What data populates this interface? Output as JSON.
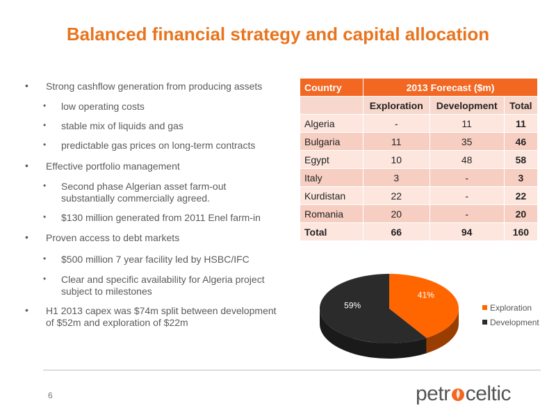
{
  "title": "Balanced financial strategy and capital allocation",
  "bullets": [
    {
      "level": 1,
      "text": "Strong cashflow generation from producing assets"
    },
    {
      "level": 2,
      "text": "low operating costs"
    },
    {
      "level": 2,
      "text": "stable mix of liquids and gas"
    },
    {
      "level": 2,
      "text": "predictable gas prices on long-term contracts"
    },
    {
      "level": 1,
      "text": "Effective portfolio management"
    },
    {
      "level": 2,
      "text": "Second phase Algerian asset farm-out substantially commercially agreed."
    },
    {
      "level": 2,
      "text": "$130 million generated from 2011 Enel farm-in"
    },
    {
      "level": 1,
      "text": "Proven access  to debt markets"
    },
    {
      "level": 2,
      "text": "$500 million 7 year facility led by HSBC/IFC"
    },
    {
      "level": 2,
      "text": "Clear and specific availability for Algeria project subject to milestones"
    },
    {
      "level": 1,
      "text": "H1 2013 capex was $74m split between development of $52m and exploration of $22m"
    }
  ],
  "table": {
    "header_country": "Country",
    "header_forecast": "2013 Forecast ($m)",
    "subheaders": [
      "Exploration",
      "Development",
      "Total"
    ],
    "rows": [
      {
        "country": "Algeria",
        "exploration": "-",
        "development": "11",
        "total": "11"
      },
      {
        "country": "Bulgaria",
        "exploration": "11",
        "development": "35",
        "total": "46"
      },
      {
        "country": "Egypt",
        "exploration": "10",
        "development": "48",
        "total": "58"
      },
      {
        "country": "Italy",
        "exploration": "3",
        "development": "-",
        "total": "3"
      },
      {
        "country": "Kurdistan",
        "exploration": "22",
        "development": "-",
        "total": "22"
      },
      {
        "country": "Romania",
        "exploration": "20",
        "development": "-",
        "total": "20"
      }
    ],
    "total_row": {
      "label": "Total",
      "exploration": "66",
      "development": "94",
      "total": "160"
    }
  },
  "chart_data": {
    "type": "pie",
    "slices": [
      {
        "label": "Exploration",
        "value": 41,
        "display": "41%",
        "color": "#FF6600"
      },
      {
        "label": "Development",
        "value": 59,
        "display": "59%",
        "color": "#2B2B2B"
      }
    ],
    "legend_position": "right"
  },
  "footer": {
    "page_number": "6",
    "logo_text_pre": "petr",
    "logo_text_post": "celtic"
  },
  "colors": {
    "accent": "#E8741E",
    "table_header": "#F26722"
  }
}
